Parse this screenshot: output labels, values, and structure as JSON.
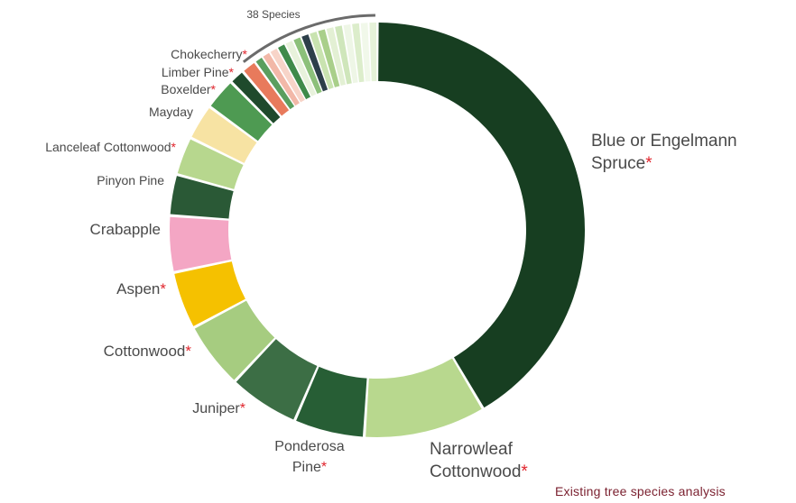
{
  "chart_data": {
    "type": "donut",
    "title": "",
    "caption": "Existing tree species analysis",
    "unit": "percent of trees (estimated from slice size)",
    "other_label": "38 Species",
    "native_marker": "*",
    "slices": [
      {
        "label": "Blue or Engelmann Spruce",
        "label_lines": [
          "Blue or Engelmann",
          "Spruce"
        ],
        "native": true,
        "value": 41.5,
        "color": "#173e21"
      },
      {
        "label": "Narrowleaf Cottonwood",
        "label_lines": [
          "Narrowleaf",
          "Cottonwood"
        ],
        "native": true,
        "value": 9.5,
        "color": "#b8d88e"
      },
      {
        "label": "Ponderosa Pine",
        "label_lines": [
          "Ponderosa",
          "Pine"
        ],
        "native": true,
        "value": 5.5,
        "color": "#275e35"
      },
      {
        "label": "Juniper",
        "label_lines": [
          "Juniper"
        ],
        "native": true,
        "value": 5.5,
        "color": "#3c6e45"
      },
      {
        "label": "Cottonwood",
        "label_lines": [
          "Cottonwood"
        ],
        "native": true,
        "value": 5.2,
        "color": "#a6cc80"
      },
      {
        "label": "Aspen",
        "label_lines": [
          "Aspen"
        ],
        "native": true,
        "value": 4.5,
        "color": "#f5c100"
      },
      {
        "label": "Crabapple",
        "label_lines": [
          "Crabapple"
        ],
        "native": false,
        "value": 4.4,
        "color": "#f4a6c4"
      },
      {
        "label": "Pinyon Pine",
        "label_lines": [
          "Pinyon Pine"
        ],
        "native": false,
        "value": 3.2,
        "color": "#2a5936"
      },
      {
        "label": "Lanceleaf Cottonwood",
        "label_lines": [
          "Lanceleaf Cottonwood"
        ],
        "native": true,
        "value": 3.0,
        "color": "#b7d78e"
      },
      {
        "label": "Mayday",
        "label_lines": [
          "Mayday"
        ],
        "native": false,
        "value": 2.8,
        "color": "#f7e3a3"
      },
      {
        "label": "Boxelder",
        "label_lines": [
          "Boxelder"
        ],
        "native": true,
        "value": 2.5,
        "color": "#4e9a52"
      },
      {
        "label": "Limber Pine",
        "label_lines": [
          "Limber Pine"
        ],
        "native": true,
        "value": 1.2,
        "color": "#1f4a2c"
      },
      {
        "label": "Chokecherry",
        "label_lines": [
          "Chokecherry"
        ],
        "native": true,
        "value": 1.2,
        "color": "#e87a5c"
      },
      {
        "label": "38 Species",
        "label_lines": [],
        "native": false,
        "value": 10.0,
        "color": "#d7ebc2",
        "sub_colors": [
          "#5a9e5e",
          "#f2b8a8",
          "#f7d4c8",
          "#3f8a4a",
          "#e8f2dc",
          "#8cc07a",
          "#2d3f4a",
          "#c9e3b0",
          "#a9cf8a",
          "#e3f0d4",
          "#cfe6bb",
          "#eef6e6",
          "#dcedcb",
          "#f1f8ea",
          "#e6f2d9"
        ]
      }
    ]
  }
}
